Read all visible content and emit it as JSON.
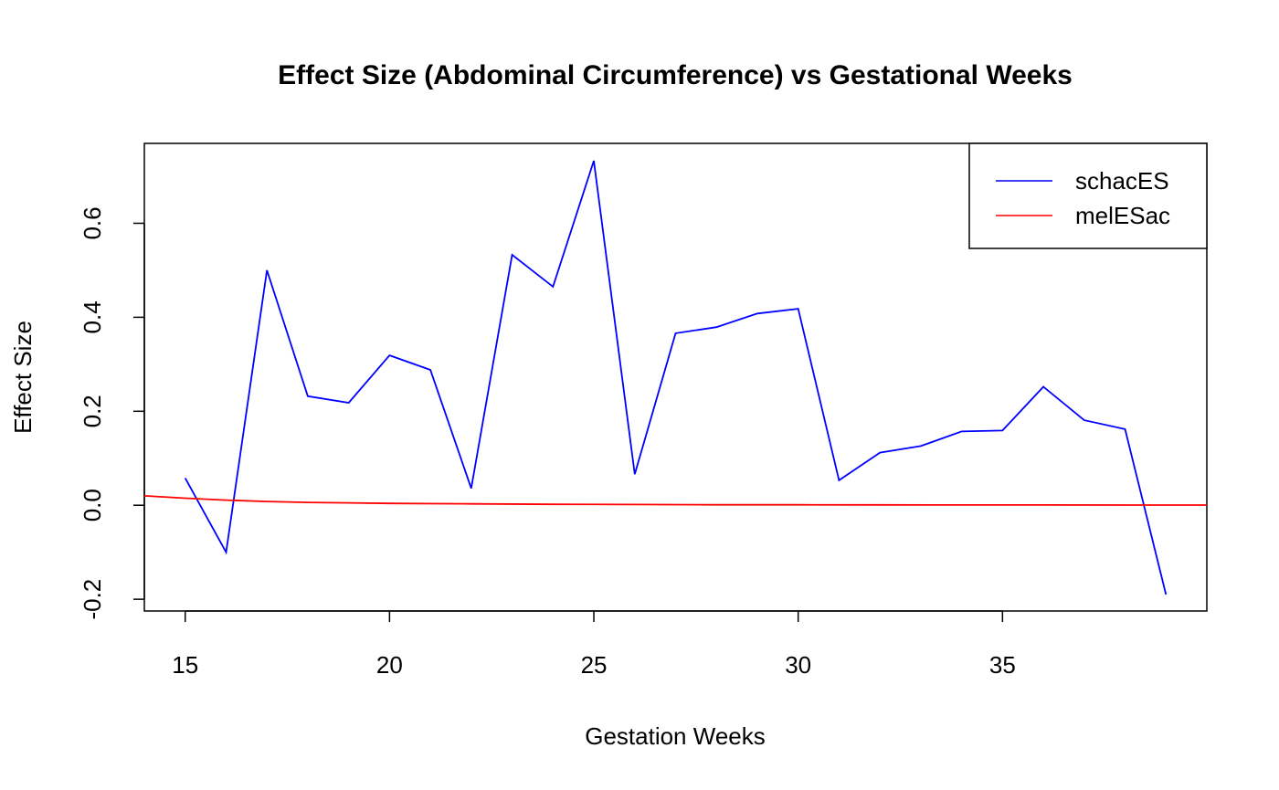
{
  "chart_data": {
    "type": "line",
    "title": "Effect Size (Abdominal Circumference) vs Gestational Weeks",
    "xlabel": "Gestation Weeks",
    "ylabel": "Effect Size",
    "xlim": [
      14,
      40
    ],
    "ylim": [
      -0.225,
      0.77
    ],
    "x_ticks": [
      15,
      20,
      25,
      30,
      35
    ],
    "y_ticks": [
      -0.2,
      0.0,
      0.2,
      0.4,
      0.6
    ],
    "x_tick_labels": [
      "15",
      "20",
      "25",
      "30",
      "35"
    ],
    "y_tick_labels": [
      "-0.2",
      "0.0",
      "0.2",
      "0.4",
      "0.6"
    ],
    "grid": false,
    "legend_position": "top-right",
    "series": [
      {
        "name": "schacES",
        "color": "#0000ff",
        "x": [
          15,
          16,
          17,
          18,
          19,
          20,
          21,
          22,
          23,
          24,
          25,
          26,
          27,
          28,
          29,
          30,
          31,
          32,
          33,
          34,
          35,
          36,
          37,
          38,
          39
        ],
        "values": [
          0.058,
          -0.1,
          0.5,
          0.232,
          0.218,
          0.319,
          0.288,
          0.036,
          0.533,
          0.465,
          0.733,
          0.066,
          0.366,
          0.379,
          0.408,
          0.418,
          0.053,
          0.112,
          0.126,
          0.157,
          0.159,
          0.252,
          0.181,
          0.162,
          -0.19
        ]
      },
      {
        "name": "melESac",
        "color": "#ff0000",
        "x": [
          14,
          15,
          16,
          17,
          18,
          19,
          20,
          22,
          24,
          26,
          28,
          30,
          32,
          34,
          36,
          38,
          40
        ],
        "values": [
          0.02,
          0.015,
          0.011,
          0.008,
          0.006,
          0.005,
          0.004,
          0.003,
          0.002,
          0.0015,
          0.001,
          0.001,
          0.0008,
          0.0007,
          0.0006,
          0.0005,
          0.0005
        ]
      }
    ]
  }
}
